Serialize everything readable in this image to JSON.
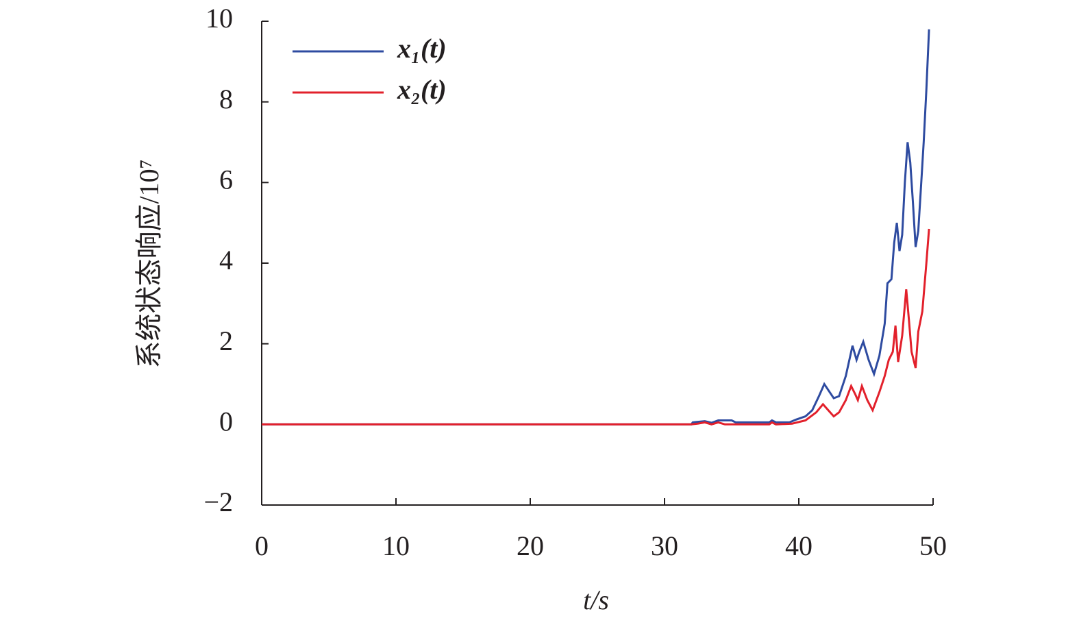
{
  "chart_data": {
    "type": "line",
    "x_label": "t/s",
    "y_label": "系统状态响应/10⁷",
    "xlim": [
      0,
      50
    ],
    "xticks": [
      0,
      10,
      20,
      30,
      40,
      50
    ],
    "ylim": [
      -2,
      10
    ],
    "yticks": [
      {
        "value": -2,
        "label": "−2"
      },
      0,
      2,
      4,
      6,
      8,
      10
    ],
    "legend": "upper left",
    "series": [
      {
        "name": "x₁(t)",
        "color": "#2e4ba0",
        "x": [
          0,
          32,
          32.1,
          33,
          33.5,
          34,
          35,
          35.3,
          37.8,
          38,
          38.3,
          39.3,
          39.8,
          40.5,
          41,
          41.5,
          41.9,
          42.3,
          42.6,
          43,
          43.5,
          44,
          44.3,
          44.5,
          44.8,
          45.2,
          45.6,
          46,
          46.4,
          46.6,
          46.9,
          47.1,
          47.3,
          47.5,
          47.7,
          47.9,
          48.1,
          48.3,
          48.5,
          48.7,
          48.9,
          49.1,
          49.3,
          49.5,
          49.7
        ],
        "values": [
          0,
          0,
          0.05,
          0.08,
          0.04,
          0.1,
          0.1,
          0.05,
          0.05,
          0.1,
          0.05,
          0.05,
          0.12,
          0.2,
          0.35,
          0.7,
          1.0,
          0.8,
          0.65,
          0.7,
          1.2,
          1.95,
          1.6,
          1.8,
          2.05,
          1.6,
          1.25,
          1.7,
          2.5,
          3.5,
          3.6,
          4.5,
          5.0,
          4.3,
          4.7,
          6.0,
          7.0,
          6.5,
          5.5,
          4.4,
          4.8,
          5.9,
          7.0,
          8.3,
          9.8
        ]
      },
      {
        "name": "x₂(t)",
        "color": "#e2202b",
        "x": [
          0,
          32,
          32.5,
          33,
          33.5,
          34,
          34.5,
          37.8,
          38,
          38.3,
          39.5,
          40.5,
          41.3,
          41.8,
          42.2,
          42.6,
          43,
          43.5,
          43.9,
          44.2,
          44.4,
          44.7,
          45.1,
          45.5,
          46,
          46.4,
          46.7,
          47,
          47.2,
          47.4,
          47.7,
          48,
          48.2,
          48.4,
          48.7,
          48.9,
          49.2,
          49.5,
          49.7
        ],
        "values": [
          0,
          0,
          0.02,
          0.05,
          0,
          0.05,
          0,
          0,
          0.05,
          0,
          0.02,
          0.1,
          0.3,
          0.5,
          0.35,
          0.2,
          0.3,
          0.6,
          0.95,
          0.75,
          0.6,
          0.95,
          0.6,
          0.35,
          0.8,
          1.2,
          1.6,
          1.8,
          2.45,
          1.55,
          2.2,
          3.35,
          2.6,
          1.8,
          1.4,
          2.3,
          2.8,
          4.0,
          4.85
        ]
      }
    ]
  }
}
